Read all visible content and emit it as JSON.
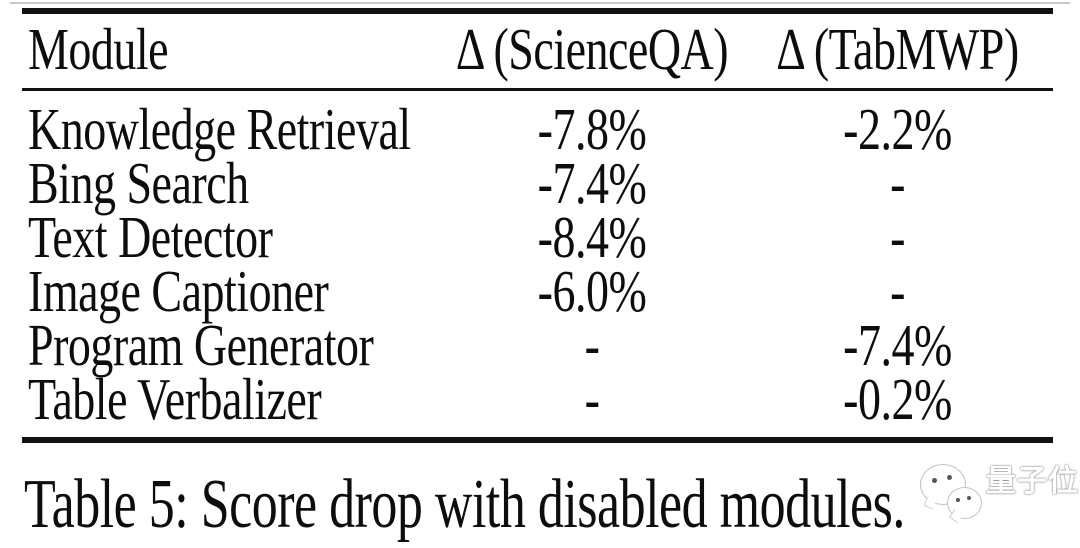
{
  "page": {
    "background_color": "#ffffff",
    "text_color": "#0d0d0d",
    "rule_color": "#111111"
  },
  "table": {
    "columns": [
      "Module",
      "Δ (ScienceQA)",
      "Δ (TabMWP)"
    ],
    "rows": [
      {
        "module": "Knowledge Retrieval",
        "scienceqa": "-7.8%",
        "tabmwp": "-2.2%"
      },
      {
        "module": "Bing Search",
        "scienceqa": "-7.4%",
        "tabmwp": "-"
      },
      {
        "module": "Text Detector",
        "scienceqa": "-8.4%",
        "tabmwp": "-"
      },
      {
        "module": "Image Captioner",
        "scienceqa": "-6.0%",
        "tabmwp": "-"
      },
      {
        "module": "Program Generator",
        "scienceqa": "-",
        "tabmwp": "-7.4%"
      },
      {
        "module": "Table Verbalizer",
        "scienceqa": "-",
        "tabmwp": "-0.2%"
      }
    ],
    "caption": "Table 5: Score drop with disabled modules."
  },
  "watermark": {
    "text": "量子位",
    "color": "#ffffff"
  },
  "chart_data": {
    "type": "table",
    "title": "Table 5: Score drop with disabled modules.",
    "columns": [
      "Module",
      "Δ (ScienceQA)",
      "Δ (TabMWP)"
    ],
    "rows": [
      [
        "Knowledge Retrieval",
        "-7.8%",
        "-2.2%"
      ],
      [
        "Bing Search",
        "-7.4%",
        "-"
      ],
      [
        "Text Detector",
        "-8.4%",
        "-"
      ],
      [
        "Image Captioner",
        "-6.0%",
        "-"
      ],
      [
        "Program Generator",
        "-",
        "-7.4%"
      ],
      [
        "Table Verbalizer",
        "-",
        "-0.2%"
      ]
    ]
  }
}
